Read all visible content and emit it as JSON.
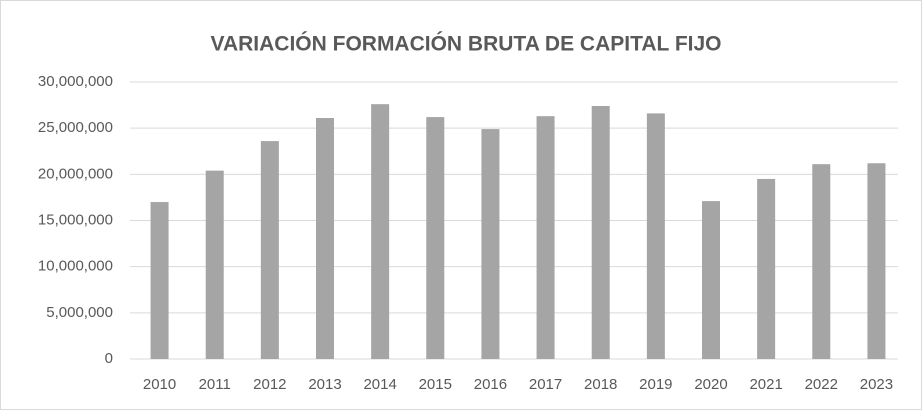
{
  "chart_data": {
    "type": "bar",
    "title": "VARIACIÓN FORMACIÓN BRUTA DE CAPITAL FIJO",
    "categories": [
      "2010",
      "2011",
      "2012",
      "2013",
      "2014",
      "2015",
      "2016",
      "2017",
      "2018",
      "2019",
      "2020",
      "2021",
      "2022",
      "2023"
    ],
    "values": [
      17000000,
      20400000,
      23600000,
      26100000,
      27600000,
      26200000,
      24900000,
      26300000,
      27400000,
      26600000,
      17100000,
      19500000,
      21100000,
      21200000
    ],
    "color": "#a5a5a5",
    "ylim": [
      0,
      30000000
    ],
    "yticks": [
      0,
      {
        "value": 5000000,
        "label": "5,000,000"
      },
      {
        "value": 10000000,
        "label": "10,000,000"
      },
      {
        "value": 15000000,
        "label": "15,000,000"
      },
      {
        "value": 20000000,
        "label": "20,000,000"
      },
      {
        "value": 25000000,
        "label": "25,000,000"
      },
      {
        "value": 30000000,
        "label": "30,000,000"
      }
    ],
    "grid": true
  }
}
